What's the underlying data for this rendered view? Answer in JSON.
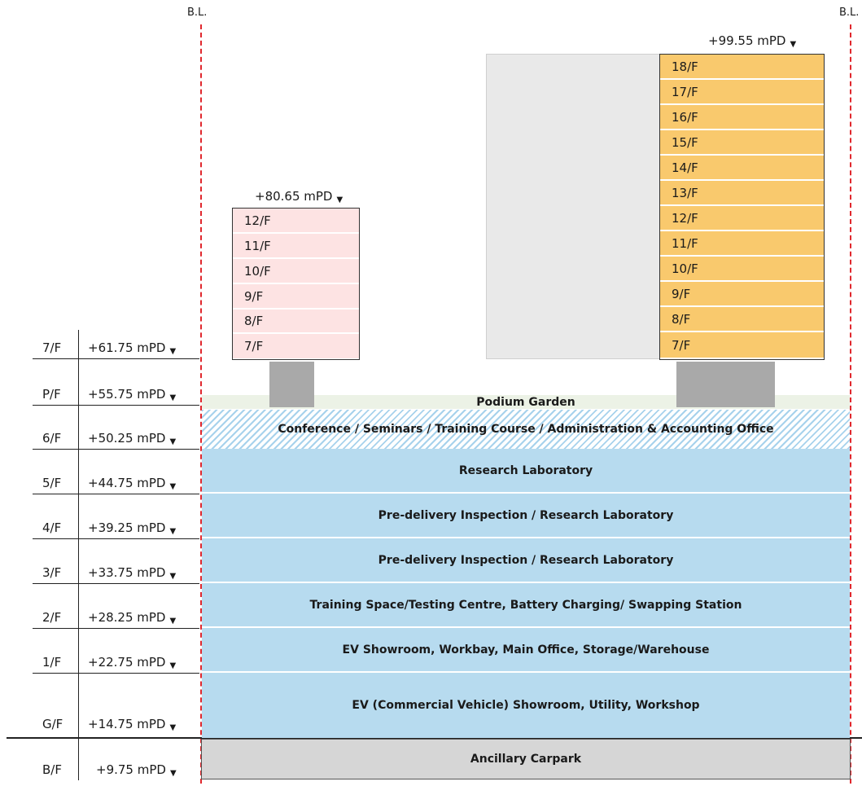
{
  "boundary_labels": {
    "left": "B.L.",
    "right": "B.L."
  },
  "levels": [
    {
      "floor": "7/F",
      "mpd": "+61.75 mPD"
    },
    {
      "floor": "P/F",
      "mpd": "+55.75 mPD"
    },
    {
      "floor": "6/F",
      "mpd": "+50.25 mPD"
    },
    {
      "floor": "5/F",
      "mpd": "+44.75 mPD"
    },
    {
      "floor": "4/F",
      "mpd": "+39.25 mPD"
    },
    {
      "floor": "3/F",
      "mpd": "+33.75 mPD"
    },
    {
      "floor": "2/F",
      "mpd": "+28.25 mPD"
    },
    {
      "floor": "1/F",
      "mpd": "+22.75 mPD"
    },
    {
      "floor": "G/F",
      "mpd": "+14.75 mPD"
    },
    {
      "floor": "B/F",
      "mpd": "+9.75 mPD"
    }
  ],
  "triangle": "▼",
  "podium": {
    "garden": "Podium Garden",
    "floors": [
      "Conference / Seminars / Training Course / Administration & Accounting  Office",
      "Research Laboratory",
      "Pre-delivery Inspection / Research Laboratory",
      "Pre-delivery Inspection / Research Laboratory",
      "Training Space/Testing Centre, Battery Charging/ Swapping Station",
      "EV Showroom, Workbay, Main Office, Storage/Warehouse",
      "EV (Commercial Vehicle) Showroom, Utility, Workshop",
      "Ancillary Carpark"
    ]
  },
  "tower_left": {
    "top_level": "+80.65 mPD",
    "floors": [
      "12/F",
      "11/F",
      "10/F",
      "9/F",
      "8/F",
      "7/F"
    ]
  },
  "tower_right": {
    "top_level": "+99.55 mPD",
    "floors": [
      "18/F",
      "17/F",
      "16/F",
      "15/F",
      "14/F",
      "13/F",
      "12/F",
      "11/F",
      "10/F",
      "9/F",
      "8/F",
      "7/F"
    ]
  },
  "colors": {
    "boundary_line": "#e0282e",
    "podium_blue": "#b7dbef",
    "tower_left_fill": "#fde3e3",
    "tower_right_fill": "#f9c96d",
    "carpark_grey": "#d6d6d6"
  }
}
